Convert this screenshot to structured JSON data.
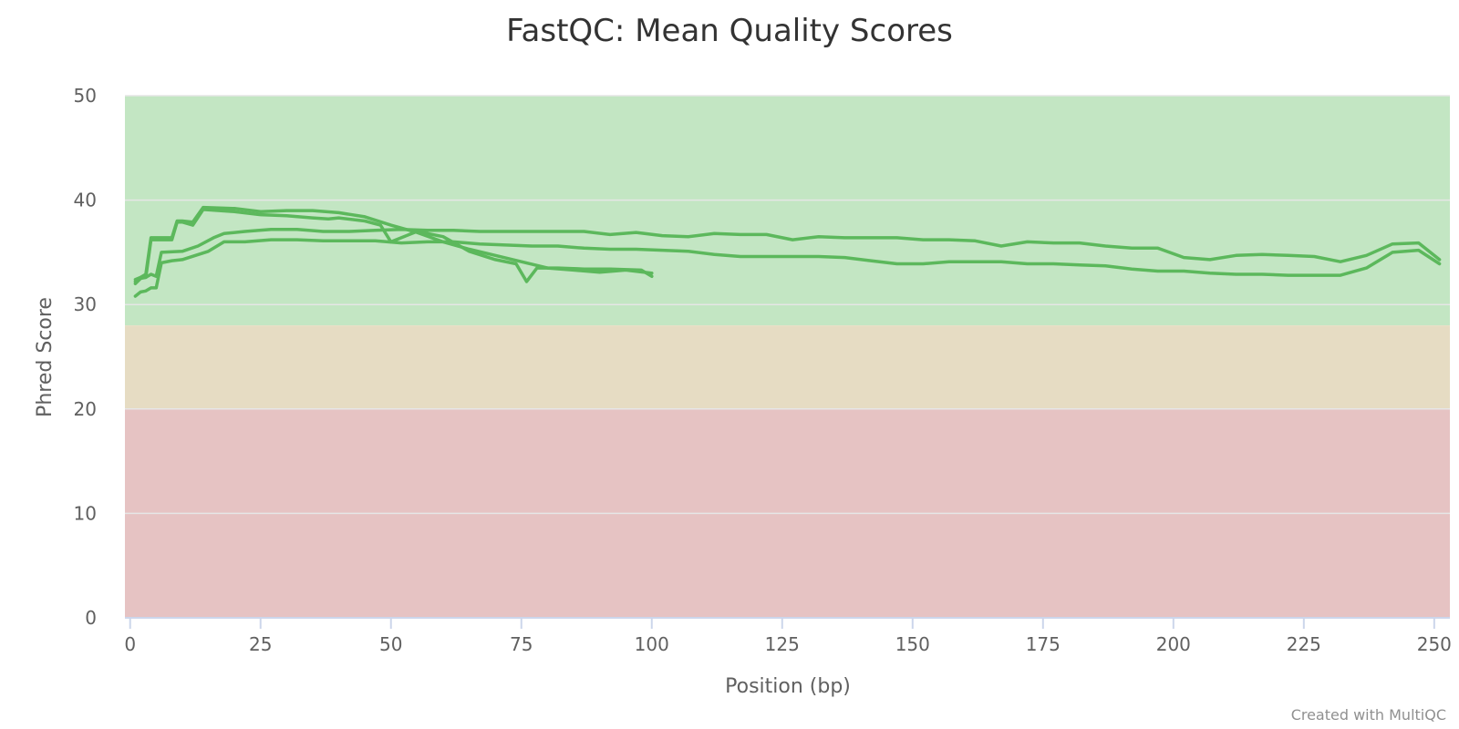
{
  "chart_data": {
    "type": "line",
    "title": "FastQC: Mean Quality Scores",
    "xlabel": "Position (bp)",
    "ylabel": "Phred Score",
    "xlim": [
      -1,
      253
    ],
    "ylim": [
      0,
      50
    ],
    "x_ticks": [
      0,
      25,
      50,
      75,
      100,
      125,
      150,
      175,
      200,
      225,
      250
    ],
    "y_ticks": [
      0,
      10,
      20,
      30,
      40,
      50
    ],
    "grid": true,
    "legend": "none",
    "bands": [
      {
        "from": 28,
        "to": 50,
        "color": "#c3e6c3"
      },
      {
        "from": 20,
        "to": 28,
        "color": "#e6dcc3"
      },
      {
        "from": 0,
        "to": 20,
        "color": "#e6c3c3"
      }
    ],
    "line_color": "#5cb85c",
    "series": [
      {
        "points": [
          [
            1,
            32.2
          ],
          [
            2,
            32.6
          ],
          [
            3,
            32.6
          ],
          [
            4,
            36.2
          ],
          [
            5,
            36.2
          ],
          [
            6,
            36.2
          ],
          [
            7,
            36.2
          ],
          [
            8,
            36.2
          ],
          [
            9,
            37.9
          ],
          [
            10,
            37.9
          ],
          [
            12,
            37.6
          ],
          [
            14,
            39.1
          ],
          [
            20,
            38.9
          ],
          [
            25,
            38.6
          ],
          [
            30,
            38.5
          ],
          [
            35,
            38.3
          ],
          [
            38,
            38.2
          ],
          [
            40,
            38.3
          ],
          [
            45,
            38.0
          ],
          [
            48,
            37.6
          ],
          [
            50,
            36.0
          ],
          [
            55,
            37.0
          ],
          [
            60,
            36.5
          ],
          [
            65,
            35.1
          ],
          [
            70,
            34.3
          ],
          [
            74,
            33.9
          ],
          [
            76,
            32.2
          ],
          [
            78,
            33.5
          ],
          [
            82,
            33.5
          ],
          [
            87,
            33.4
          ],
          [
            92,
            33.4
          ],
          [
            98,
            33.3
          ],
          [
            100,
            32.7
          ]
        ]
      },
      {
        "points": [
          [
            1,
            32.4
          ],
          [
            2,
            32.6
          ],
          [
            3,
            32.9
          ],
          [
            4,
            36.4
          ],
          [
            5,
            36.4
          ],
          [
            6,
            36.4
          ],
          [
            7,
            36.4
          ],
          [
            8,
            36.4
          ],
          [
            9,
            38.0
          ],
          [
            10,
            38.0
          ],
          [
            12,
            37.9
          ],
          [
            14,
            39.3
          ],
          [
            20,
            39.2
          ],
          [
            25,
            38.9
          ],
          [
            30,
            39.0
          ],
          [
            35,
            39.0
          ],
          [
            40,
            38.8
          ],
          [
            45,
            38.4
          ],
          [
            50,
            37.6
          ],
          [
            55,
            36.9
          ],
          [
            60,
            36.0
          ],
          [
            65,
            35.3
          ],
          [
            70,
            34.7
          ],
          [
            75,
            34.1
          ],
          [
            80,
            33.5
          ],
          [
            85,
            33.3
          ],
          [
            90,
            33.1
          ],
          [
            95,
            33.3
          ],
          [
            100,
            33.0
          ]
        ]
      },
      {
        "points": [
          [
            1,
            30.8
          ],
          [
            2,
            31.2
          ],
          [
            3,
            31.3
          ],
          [
            4,
            31.6
          ],
          [
            5,
            31.6
          ],
          [
            6,
            34.0
          ],
          [
            8,
            34.2
          ],
          [
            10,
            34.3
          ],
          [
            15,
            35.1
          ],
          [
            18,
            36.0
          ],
          [
            22,
            36.0
          ],
          [
            27,
            36.2
          ],
          [
            32,
            36.2
          ],
          [
            37,
            36.1
          ],
          [
            42,
            36.1
          ],
          [
            47,
            36.1
          ],
          [
            52,
            35.9
          ],
          [
            57,
            36.0
          ],
          [
            62,
            36.0
          ],
          [
            67,
            35.8
          ],
          [
            72,
            35.7
          ],
          [
            77,
            35.6
          ],
          [
            82,
            35.6
          ],
          [
            87,
            35.4
          ],
          [
            92,
            35.3
          ],
          [
            97,
            35.3
          ],
          [
            102,
            35.2
          ],
          [
            107,
            35.1
          ],
          [
            112,
            34.8
          ],
          [
            117,
            34.6
          ],
          [
            122,
            34.6
          ],
          [
            127,
            34.6
          ],
          [
            132,
            34.6
          ],
          [
            137,
            34.5
          ],
          [
            142,
            34.2
          ],
          [
            147,
            33.9
          ],
          [
            152,
            33.9
          ],
          [
            157,
            34.1
          ],
          [
            162,
            34.1
          ],
          [
            167,
            34.1
          ],
          [
            172,
            33.9
          ],
          [
            177,
            33.9
          ],
          [
            182,
            33.8
          ],
          [
            187,
            33.7
          ],
          [
            192,
            33.4
          ],
          [
            197,
            33.2
          ],
          [
            202,
            33.2
          ],
          [
            207,
            33.0
          ],
          [
            212,
            32.9
          ],
          [
            217,
            32.9
          ],
          [
            222,
            32.8
          ],
          [
            227,
            32.8
          ],
          [
            232,
            32.8
          ],
          [
            237,
            33.5
          ],
          [
            242,
            35.0
          ],
          [
            247,
            35.2
          ],
          [
            251,
            33.9
          ]
        ]
      },
      {
        "points": [
          [
            1,
            32.0
          ],
          [
            2,
            32.5
          ],
          [
            3,
            32.6
          ],
          [
            4,
            32.9
          ],
          [
            5,
            32.7
          ],
          [
            6,
            35.0
          ],
          [
            10,
            35.1
          ],
          [
            13,
            35.6
          ],
          [
            16,
            36.4
          ],
          [
            18,
            36.8
          ],
          [
            22,
            37.0
          ],
          [
            27,
            37.2
          ],
          [
            32,
            37.2
          ],
          [
            37,
            37.0
          ],
          [
            42,
            37.0
          ],
          [
            47,
            37.1
          ],
          [
            52,
            37.2
          ],
          [
            57,
            37.1
          ],
          [
            62,
            37.1
          ],
          [
            67,
            37.0
          ],
          [
            72,
            37.0
          ],
          [
            77,
            37.0
          ],
          [
            82,
            37.0
          ],
          [
            87,
            37.0
          ],
          [
            92,
            36.7
          ],
          [
            97,
            36.9
          ],
          [
            102,
            36.6
          ],
          [
            107,
            36.5
          ],
          [
            112,
            36.8
          ],
          [
            117,
            36.7
          ],
          [
            122,
            36.7
          ],
          [
            127,
            36.2
          ],
          [
            132,
            36.5
          ],
          [
            137,
            36.4
          ],
          [
            142,
            36.4
          ],
          [
            147,
            36.4
          ],
          [
            152,
            36.2
          ],
          [
            157,
            36.2
          ],
          [
            162,
            36.1
          ],
          [
            167,
            35.6
          ],
          [
            172,
            36.0
          ],
          [
            177,
            35.9
          ],
          [
            182,
            35.9
          ],
          [
            187,
            35.6
          ],
          [
            192,
            35.4
          ],
          [
            197,
            35.4
          ],
          [
            202,
            34.5
          ],
          [
            207,
            34.3
          ],
          [
            212,
            34.7
          ],
          [
            217,
            34.8
          ],
          [
            222,
            34.7
          ],
          [
            227,
            34.6
          ],
          [
            232,
            34.1
          ],
          [
            237,
            34.7
          ],
          [
            242,
            35.8
          ],
          [
            247,
            35.9
          ],
          [
            251,
            34.3
          ]
        ]
      }
    ]
  },
  "credit": "Created with MultiQC"
}
